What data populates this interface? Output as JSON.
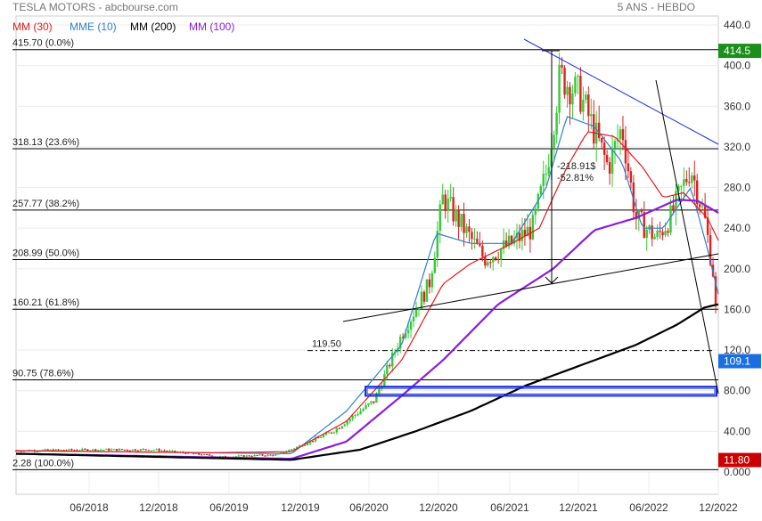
{
  "header": {
    "title": "TESLA MOTORS - abcbourse.com",
    "period": "5 ANS - HEBDO",
    "legend": [
      {
        "label": "MM (30)",
        "color": "#e41a1c"
      },
      {
        "label": "MME (10)",
        "color": "#2f7fd0"
      },
      {
        "label": "MM (200)",
        "color": "#000000"
      },
      {
        "label": "MM (100)",
        "color": "#8a1fd6"
      }
    ]
  },
  "colors": {
    "up_candle": "#33cc33",
    "down_candle": "#e02020",
    "fib_line": "#000000",
    "trend_blue": "#1a2fd6",
    "support_box": "#1a2fd6",
    "last_price_badge": "#1a6fe0",
    "high_badge": "#1a8f1a",
    "low_badge": "#cc0000"
  },
  "chart_data": {
    "type": "candlestick",
    "x_ticks": [
      "06/2018",
      "12/2018",
      "06/2019",
      "12/2019",
      "06/2020",
      "12/2020",
      "06/2021",
      "12/2021",
      "06/2022",
      "12/2022"
    ],
    "y_ticks": [
      "0.000",
      "40.00",
      "80.00",
      "120.0",
      "160.0",
      "200.0",
      "240.0",
      "280.0",
      "320.0",
      "360.0",
      "400.0",
      "440.0"
    ],
    "ylim": [
      0,
      440
    ],
    "fibonacci": [
      {
        "label": "415.70",
        "pct": "(0.0%)",
        "value": 415.7
      },
      {
        "label": "318.13",
        "pct": "(23.6%)",
        "value": 318.13
      },
      {
        "label": "257.77",
        "pct": "(38.2%)",
        "value": 257.77
      },
      {
        "label": "208.99",
        "pct": "(50.0%)",
        "value": 208.99
      },
      {
        "label": "160.21",
        "pct": "(61.8%)",
        "value": 160.21
      },
      {
        "label": "90.75",
        "pct": "(78.6%)",
        "value": 90.75
      },
      {
        "label": "2.28",
        "pct": "(100.0%)",
        "value": 2.28
      }
    ],
    "level_119": {
      "label": "119.50",
      "value": 119.5
    },
    "measure": {
      "line1": "-218.91$",
      "line2": "-52.81%"
    },
    "badges": {
      "high": "414.5",
      "last": "109.1",
      "low": "11.80"
    },
    "series_anchor_points": {
      "close": [
        [
          2017.9,
          21
        ],
        [
          2018.5,
          22
        ],
        [
          2018.9,
          22
        ],
        [
          2019.4,
          15
        ],
        [
          2019.8,
          17
        ],
        [
          2020.0,
          28
        ],
        [
          2020.2,
          40
        ],
        [
          2020.5,
          70
        ],
        [
          2020.7,
          135
        ],
        [
          2020.9,
          185
        ],
        [
          2021.0,
          270
        ],
        [
          2021.2,
          230
        ],
        [
          2021.3,
          210
        ],
        [
          2021.5,
          225
        ],
        [
          2021.65,
          240
        ],
        [
          2021.75,
          295
        ],
        [
          2021.85,
          390
        ],
        [
          2022.0,
          370
        ],
        [
          2022.2,
          300
        ],
        [
          2022.3,
          340
        ],
        [
          2022.4,
          250
        ],
        [
          2022.55,
          230
        ],
        [
          2022.65,
          250
        ],
        [
          2022.8,
          300
        ],
        [
          2022.9,
          250
        ],
        [
          2022.97,
          190
        ],
        [
          2023.0,
          109
        ]
      ],
      "mm30": [
        [
          2017.9,
          21
        ],
        [
          2019.3,
          19
        ],
        [
          2019.9,
          20
        ],
        [
          2020.3,
          50
        ],
        [
          2020.7,
          110
        ],
        [
          2021.0,
          185
        ],
        [
          2021.2,
          205
        ],
        [
          2021.5,
          225
        ],
        [
          2021.7,
          240
        ],
        [
          2021.9,
          300
        ],
        [
          2022.05,
          335
        ],
        [
          2022.25,
          330
        ],
        [
          2022.45,
          300
        ],
        [
          2022.6,
          270
        ],
        [
          2022.75,
          275
        ],
        [
          2022.92,
          250
        ],
        [
          2023.0,
          228
        ]
      ],
      "mme10": [
        [
          2017.9,
          21
        ],
        [
          2019.9,
          18
        ],
        [
          2020.3,
          60
        ],
        [
          2020.7,
          125
        ],
        [
          2020.95,
          235
        ],
        [
          2021.2,
          225
        ],
        [
          2021.5,
          225
        ],
        [
          2021.75,
          280
        ],
        [
          2021.9,
          350
        ],
        [
          2022.1,
          340
        ],
        [
          2022.3,
          305
        ],
        [
          2022.45,
          240
        ],
        [
          2022.6,
          240
        ],
        [
          2022.8,
          280
        ],
        [
          2022.92,
          220
        ],
        [
          2023.0,
          175
        ]
      ],
      "mm100": [
        [
          2017.9,
          18
        ],
        [
          2019.9,
          13
        ],
        [
          2020.3,
          30
        ],
        [
          2020.7,
          75
        ],
        [
          2021.0,
          110
        ],
        [
          2021.4,
          165
        ],
        [
          2021.8,
          200
        ],
        [
          2022.1,
          238
        ],
        [
          2022.4,
          250
        ],
        [
          2022.7,
          268
        ],
        [
          2022.85,
          267
        ],
        [
          2023.0,
          255
        ]
      ],
      "mm200": [
        [
          2017.9,
          18
        ],
        [
          2019.9,
          12
        ],
        [
          2020.4,
          22
        ],
        [
          2020.8,
          40
        ],
        [
          2021.2,
          60
        ],
        [
          2021.6,
          85
        ],
        [
          2022.0,
          105
        ],
        [
          2022.4,
          125
        ],
        [
          2022.7,
          145
        ],
        [
          2022.9,
          162
        ],
        [
          2023.0,
          165
        ]
      ]
    }
  }
}
